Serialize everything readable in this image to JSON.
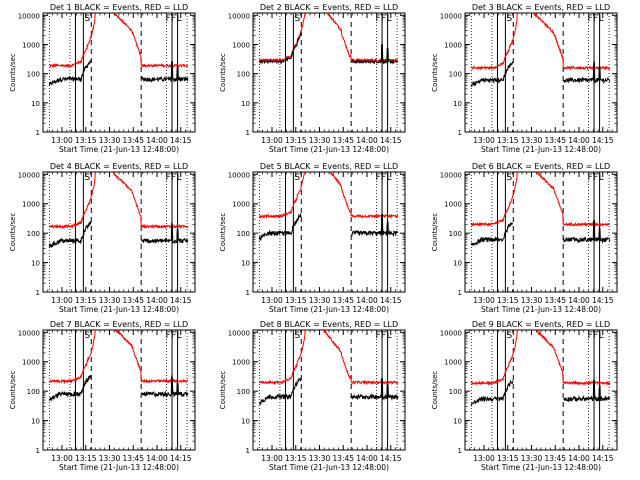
{
  "chart_data": {
    "type": "line",
    "layout": "3x3 grid",
    "shared": {
      "xlabel": "Start Time (21-Jun-13 12:48:00)",
      "ylabel": "Counts/sec",
      "x_ticks": [
        "13:00",
        "13:15",
        "13:30",
        "13:45",
        "14:00",
        "14:15"
      ],
      "x_tick_minutes": [
        12,
        27,
        42,
        57,
        72,
        87
      ],
      "xlim_minutes": [
        0,
        96
      ],
      "ylim": [
        1,
        12000
      ],
      "yscale": "log",
      "y_ticks": [
        "1",
        "10",
        "100",
        "1000",
        "10000"
      ],
      "y_tick_values": [
        1,
        10,
        100,
        1000,
        10000
      ],
      "legend_marker_labels": [
        "S",
        "F",
        "F",
        "L"
      ],
      "solid_lines_minutes": [
        20.5,
        25.5,
        81.5,
        85
      ],
      "dashed_lines_minutes": [
        30.5,
        62
      ],
      "dotted_lines_minutes": [
        4,
        17,
        78,
        91
      ],
      "event_color": "#000000",
      "lld_color": "#ff0000"
    },
    "panels": [
      {
        "title": "Det 1 BLACK = Events, RED = LLD",
        "base_event": 65,
        "base_lld": 190,
        "peak": 12000,
        "shape": "a",
        "lld_close": false
      },
      {
        "title": "Det 2 BLACK = Events, RED = LLD",
        "base_event": 260,
        "base_lld": 290,
        "peak": 12000,
        "shape": "b",
        "lld_close": true
      },
      {
        "title": "Det 3 BLACK = Events, RED = LLD",
        "base_event": 60,
        "base_lld": 160,
        "peak": 12000,
        "shape": "c",
        "lld_close": false
      },
      {
        "title": "Det 4 BLACK = Events, RED = LLD",
        "base_event": 55,
        "base_lld": 170,
        "peak": 12000,
        "shape": "a",
        "lld_close": false
      },
      {
        "title": "Det 5 BLACK = Events, RED = LLD",
        "base_event": 100,
        "base_lld": 380,
        "peak": 12000,
        "shape": "b",
        "lld_close": false
      },
      {
        "title": "Det 6 BLACK = Events, RED = LLD",
        "base_event": 60,
        "base_lld": 200,
        "peak": 12000,
        "shape": "c",
        "lld_close": false
      },
      {
        "title": "Det 7 BLACK = Events, RED = LLD",
        "base_event": 80,
        "base_lld": 220,
        "peak": 12000,
        "shape": "a",
        "lld_close": false
      },
      {
        "title": "Det 8 BLACK = Events, RED = LLD",
        "base_event": 65,
        "base_lld": 200,
        "peak": 12000,
        "shape": "b",
        "lld_close": false
      },
      {
        "title": "Det 9 BLACK = Events, RED = LLD",
        "base_event": 55,
        "base_lld": 190,
        "peak": 12000,
        "shape": "c",
        "lld_close": false
      }
    ]
  }
}
